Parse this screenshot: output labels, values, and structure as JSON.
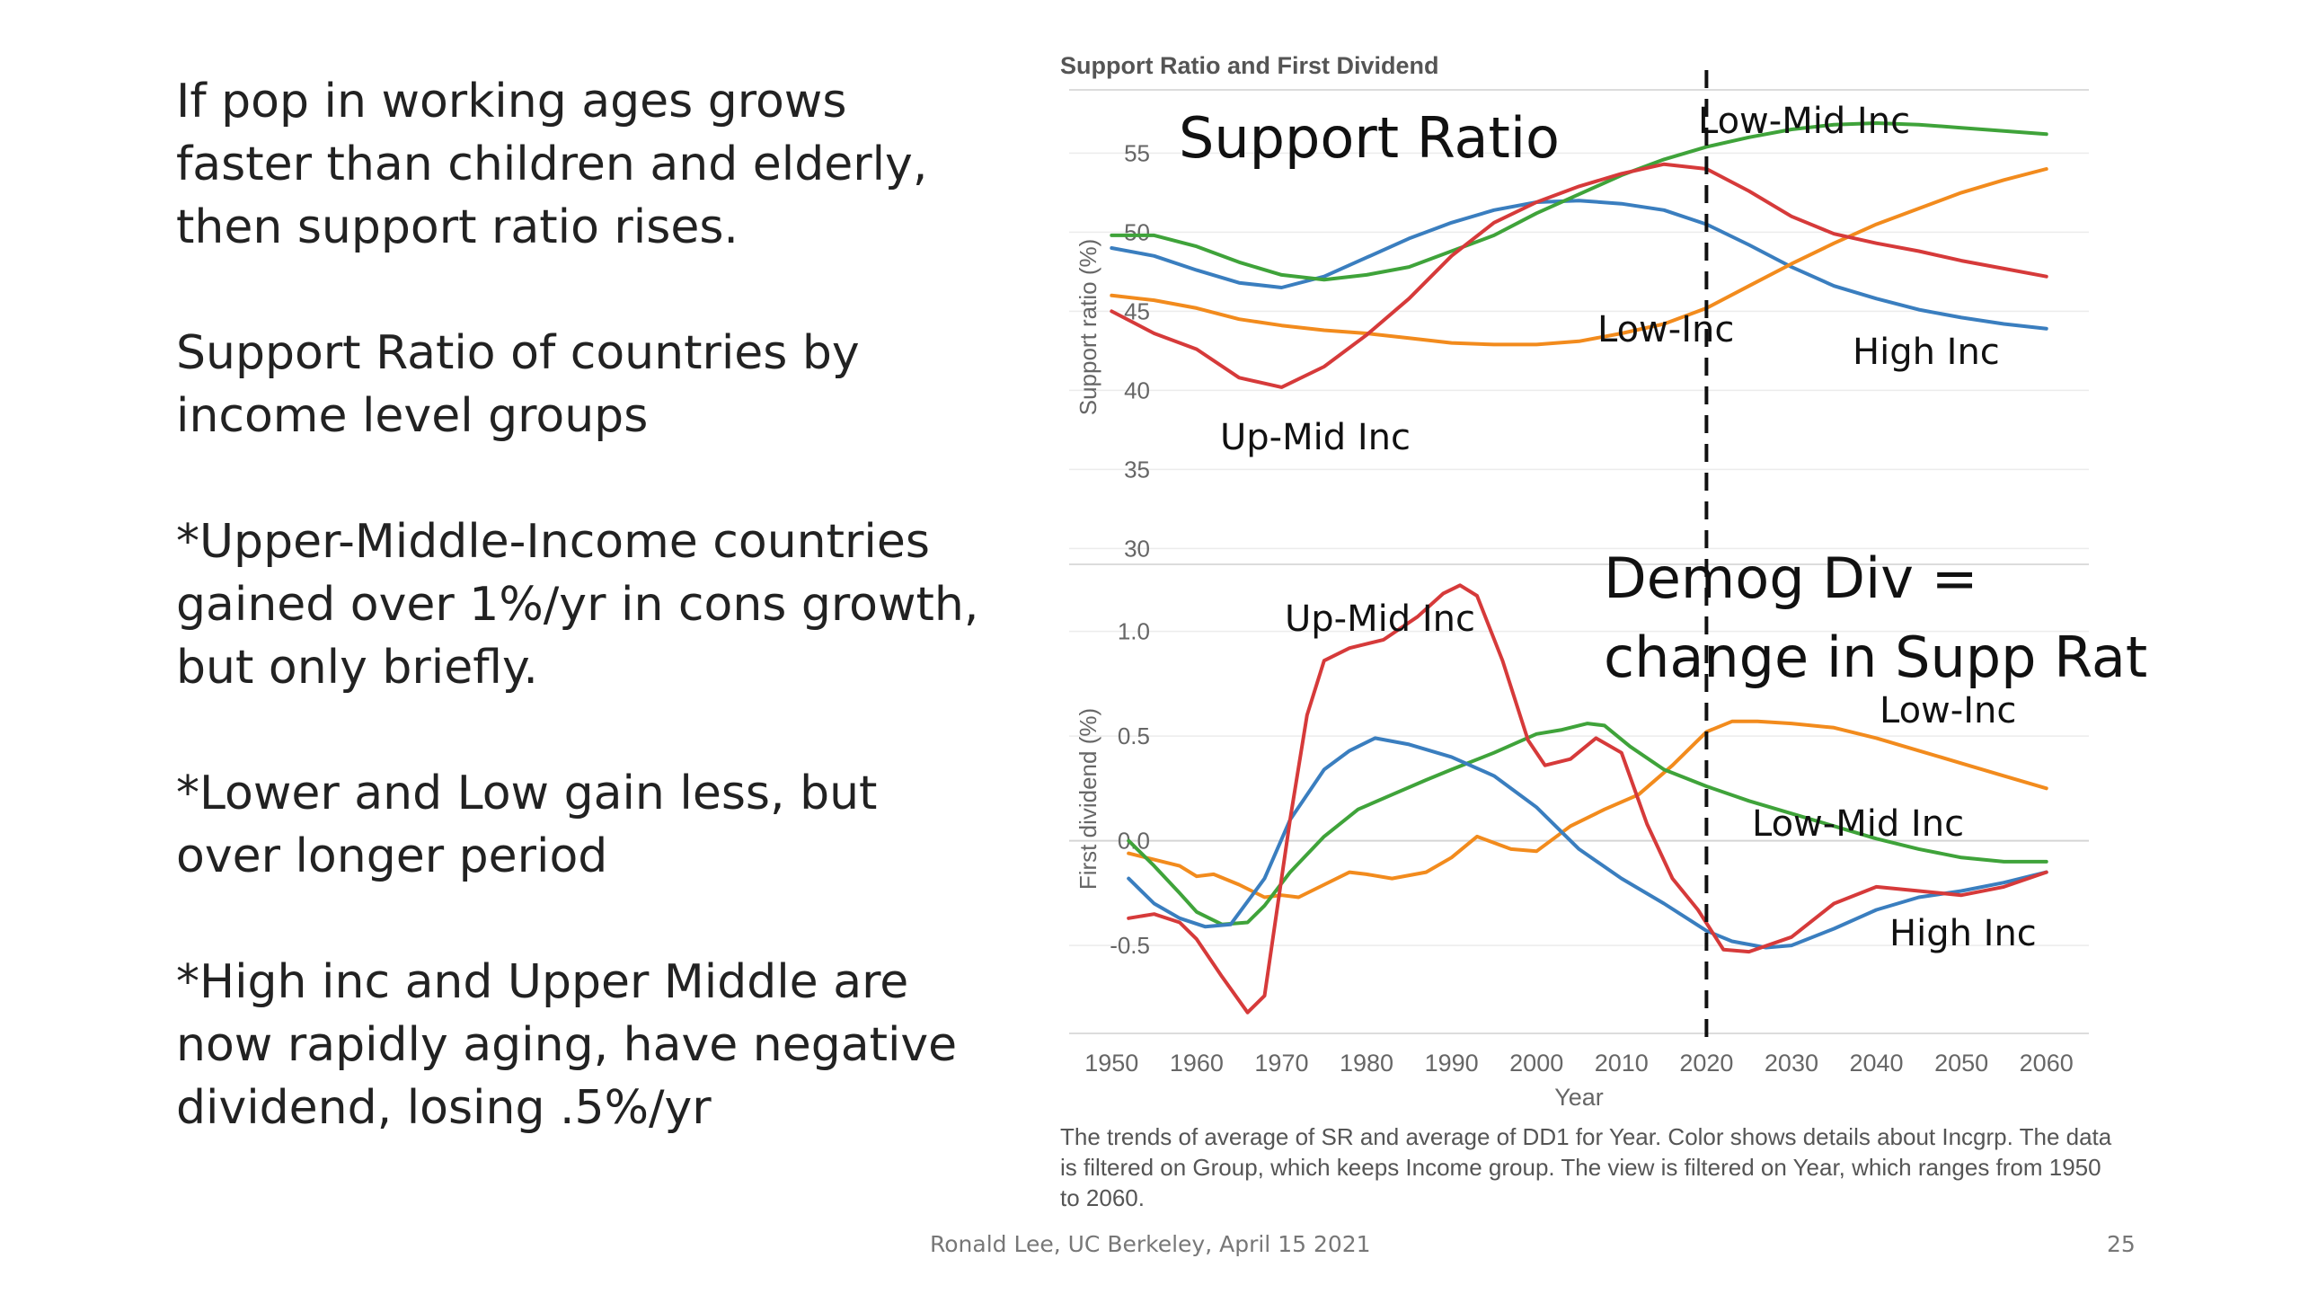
{
  "slide": {
    "paragraphs": [
      "If pop in working ages grows faster than children and elderly, then support ratio rises.",
      "Support Ratio of countries by income level groups",
      "*Upper-Middle-Income countries gained over 1%/yr in cons growth, but only briefly.",
      "*Lower and Low gain less, but over longer period",
      "*High inc and Upper Middle are now rapidly aging, have negative dividend, losing .5%/yr"
    ],
    "footer_author": "Ronald Lee, UC Berkeley, April 15 2021",
    "page_number": "25"
  },
  "figure": {
    "title": "Support Ratio and First Dividend",
    "caption": "The trends of average of SR and average of DD1 for Year.  Color shows details about Incgrp. The data is filtered on Group, which keeps Income group. The view is filtered on Year, which ranges from 1950 to 2060."
  },
  "chart_data": [
    {
      "type": "line",
      "panel_heading": "Support Ratio",
      "xlabel": "",
      "ylabel": "Support ratio (%)",
      "xlim": [
        1945,
        2065
      ],
      "ylim": [
        29,
        59
      ],
      "yticks": [
        30,
        35,
        40,
        45,
        50,
        55
      ],
      "grid": true,
      "vline_x": 2020,
      "x": [
        1950,
        1955,
        1960,
        1965,
        1970,
        1975,
        1980,
        1985,
        1990,
        1995,
        2000,
        2005,
        2010,
        2015,
        2020,
        2025,
        2030,
        2035,
        2040,
        2045,
        2050,
        2055,
        2060
      ],
      "series": [
        {
          "color": "#3a7ebf",
          "values": [
            49.0,
            48.5,
            47.6,
            46.8,
            46.5,
            47.2,
            48.4,
            49.6,
            50.6,
            51.4,
            51.9,
            52.0,
            51.8,
            51.4,
            50.5,
            49.2,
            47.8,
            46.6,
            45.8,
            45.1,
            44.6,
            44.2,
            43.9
          ]
        },
        {
          "color": "#3fa33a",
          "values": [
            49.8,
            49.8,
            49.1,
            48.1,
            47.3,
            47.0,
            47.3,
            47.8,
            48.8,
            49.8,
            51.2,
            52.4,
            53.6,
            54.6,
            55.4,
            56.0,
            56.5,
            56.8,
            56.9,
            56.8,
            56.6,
            56.4,
            56.2
          ]
        },
        {
          "color": "#f28b1d",
          "values": [
            46.0,
            45.7,
            45.2,
            44.5,
            44.1,
            43.8,
            43.6,
            43.3,
            43.0,
            42.9,
            42.9,
            43.1,
            43.6,
            44.2,
            45.2,
            46.6,
            48.0,
            49.3,
            50.5,
            51.5,
            52.5,
            53.3,
            54.0
          ]
        },
        {
          "color": "#d63a3a",
          "values": [
            45.0,
            43.6,
            42.6,
            40.8,
            40.2,
            41.5,
            43.5,
            45.8,
            48.5,
            50.6,
            51.9,
            52.9,
            53.7,
            54.3,
            54.0,
            52.6,
            51.0,
            49.9,
            49.3,
            48.8,
            48.2,
            47.7,
            47.2
          ]
        }
      ],
      "annotations": [
        "Low-Mid Inc",
        "Low-Inc",
        "High Inc",
        "Up-Mid Inc"
      ]
    },
    {
      "type": "line",
      "panel_heading": "Demog Div =\nchange in Supp Rat",
      "xlabel": "Year",
      "ylabel": "First dividend (%)",
      "xlim": [
        1945,
        2065
      ],
      "ylim": [
        -0.92,
        1.32
      ],
      "yticks": [
        -0.5,
        0.0,
        0.5,
        1.0
      ],
      "ytick_labels": [
        "-0.5",
        "0.0",
        "0.5",
        "1.0"
      ],
      "xticks": [
        1950,
        1960,
        1970,
        1980,
        1990,
        2000,
        2010,
        2020,
        2030,
        2040,
        2050,
        2060
      ],
      "grid": true,
      "vline_x": 2020,
      "series": [
        {
          "color": "#f28b1d",
          "x": [
            1952,
            1955,
            1958,
            1960,
            1962,
            1965,
            1968,
            1970,
            1972,
            1975,
            1978,
            1980,
            1983,
            1987,
            1990,
            1993,
            1997,
            2000,
            2004,
            2008,
            2012,
            2016,
            2020,
            2023,
            2026,
            2030,
            2035,
            2040,
            2045,
            2050,
            2055,
            2060
          ],
          "values": [
            -0.06,
            -0.09,
            -0.12,
            -0.17,
            -0.16,
            -0.21,
            -0.27,
            -0.26,
            -0.27,
            -0.21,
            -0.15,
            -0.16,
            -0.18,
            -0.15,
            -0.08,
            0.02,
            -0.04,
            -0.05,
            0.07,
            0.15,
            0.22,
            0.36,
            0.52,
            0.57,
            0.57,
            0.56,
            0.54,
            0.49,
            0.43,
            0.37,
            0.31,
            0.25
          ]
        },
        {
          "color": "#3fa33a",
          "x": [
            1952,
            1955,
            1958,
            1960,
            1963,
            1966,
            1968,
            1971,
            1975,
            1979,
            1983,
            1987,
            1990,
            1995,
            2000,
            2003,
            2006,
            2008,
            2011,
            2015,
            2020,
            2025,
            2030,
            2035,
            2040,
            2045,
            2050,
            2055,
            2060
          ],
          "values": [
            0.0,
            -0.12,
            -0.25,
            -0.34,
            -0.4,
            -0.39,
            -0.31,
            -0.15,
            0.02,
            0.15,
            0.22,
            0.29,
            0.34,
            0.42,
            0.51,
            0.53,
            0.56,
            0.55,
            0.45,
            0.34,
            0.26,
            0.19,
            0.13,
            0.07,
            0.01,
            -0.04,
            -0.08,
            -0.1,
            -0.1
          ]
        },
        {
          "color": "#3a7ebf",
          "x": [
            1952,
            1955,
            1958,
            1961,
            1964,
            1968,
            1971,
            1975,
            1978,
            1981,
            1985,
            1990,
            1995,
            2000,
            2005,
            2010,
            2015,
            2020,
            2023,
            2027,
            2030,
            2035,
            2040,
            2045,
            2050,
            2055,
            2060
          ],
          "values": [
            -0.18,
            -0.3,
            -0.37,
            -0.41,
            -0.4,
            -0.18,
            0.1,
            0.34,
            0.43,
            0.49,
            0.46,
            0.4,
            0.31,
            0.16,
            -0.04,
            -0.18,
            -0.3,
            -0.43,
            -0.48,
            -0.51,
            -0.5,
            -0.42,
            -0.33,
            -0.27,
            -0.24,
            -0.2,
            -0.15
          ]
        },
        {
          "color": "#d63a3a",
          "x": [
            1952,
            1955,
            1958,
            1960,
            1963,
            1966,
            1968,
            1971,
            1973,
            1975,
            1978,
            1982,
            1986,
            1989,
            1991,
            1993,
            1996,
            1999,
            2001,
            2004,
            2007,
            2010,
            2013,
            2016,
            2019,
            2022,
            2025,
            2030,
            2035,
            2040,
            2045,
            2050,
            2055,
            2060
          ],
          "values": [
            -0.37,
            -0.35,
            -0.39,
            -0.47,
            -0.65,
            -0.82,
            -0.74,
            0.1,
            0.6,
            0.86,
            0.92,
            0.96,
            1.07,
            1.18,
            1.22,
            1.17,
            0.86,
            0.48,
            0.36,
            0.39,
            0.49,
            0.42,
            0.08,
            -0.18,
            -0.33,
            -0.52,
            -0.53,
            -0.46,
            -0.3,
            -0.22,
            -0.24,
            -0.26,
            -0.22,
            -0.15
          ]
        }
      ],
      "annotations": [
        "Up-Mid Inc",
        "Low-Inc",
        "Low-Mid Inc",
        "High Inc"
      ]
    }
  ]
}
